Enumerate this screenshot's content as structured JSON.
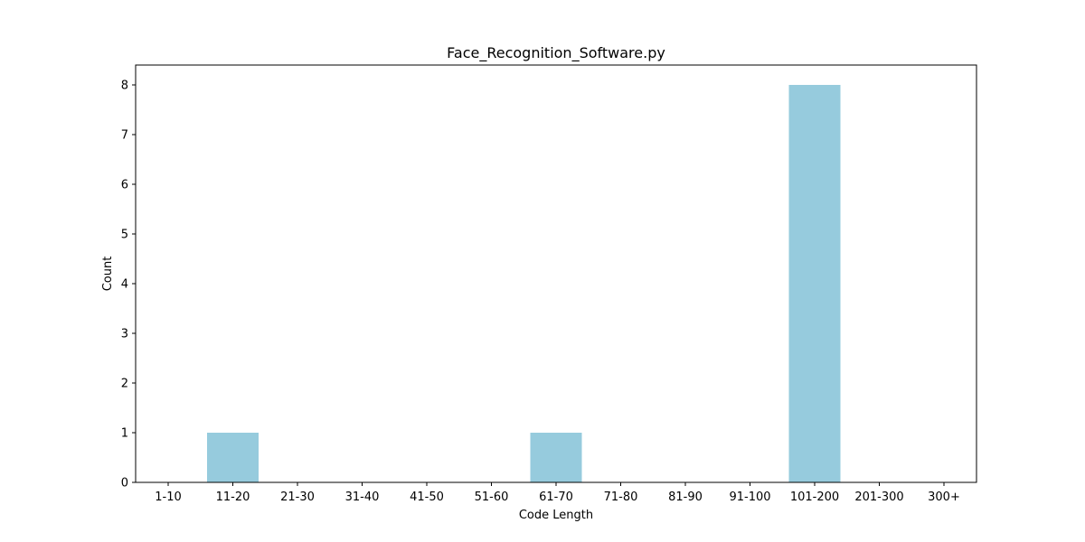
{
  "chart_data": {
    "type": "bar",
    "title": "Face_Recognition_Software.py",
    "xlabel": "Code Length",
    "ylabel": "Count",
    "categories": [
      "1-10",
      "11-20",
      "21-30",
      "31-40",
      "41-50",
      "51-60",
      "61-70",
      "71-80",
      "81-90",
      "91-100",
      "101-200",
      "201-300",
      "300+"
    ],
    "values": [
      0,
      1,
      0,
      0,
      0,
      0,
      1,
      0,
      0,
      0,
      8,
      0,
      0
    ],
    "ylim": [
      0,
      8.4
    ],
    "yticks": [
      0,
      1,
      2,
      3,
      4,
      5,
      6,
      7,
      8
    ],
    "grid": false,
    "bar_color": "#96cbdd"
  }
}
